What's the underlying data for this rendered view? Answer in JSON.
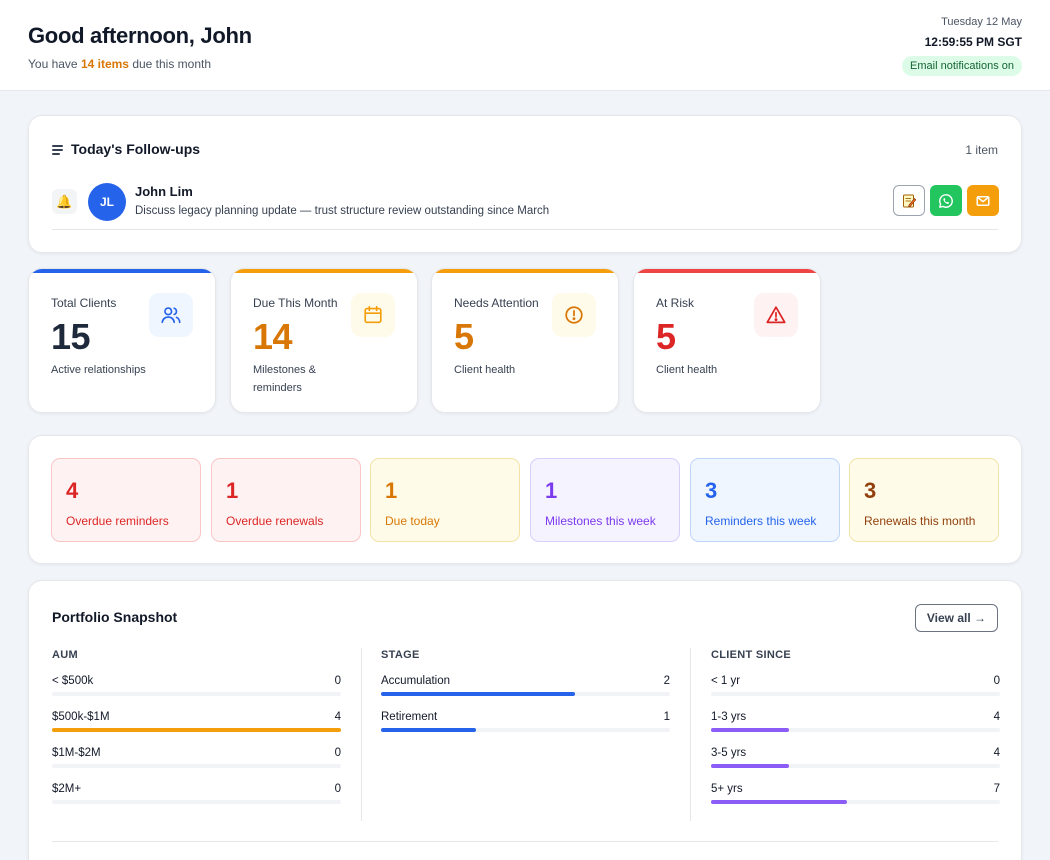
{
  "header": {
    "greeting": "Good afternoon, John",
    "sub_prefix": "You have ",
    "sub_highlight": "14 items",
    "sub_suffix": " due this month",
    "date": "Tuesday 12 May",
    "time": "12:59:55 PM SGT",
    "notifications_badge": "Email notifications on"
  },
  "followups": {
    "title": "Today's Follow-ups",
    "count": "1 item",
    "items": [
      {
        "icon": "bell-icon",
        "initials": "JL",
        "name": "John Lim",
        "note": "Discuss legacy planning update — trust structure review outstanding since March",
        "actions": [
          "note-icon",
          "whatsapp-icon",
          "mail-icon"
        ]
      }
    ]
  },
  "stats": [
    {
      "label": "Total Clients",
      "value": "15",
      "sub": "Active relationships",
      "color": "#1e293b",
      "accent": "#2563eb",
      "icon": "users-icon",
      "icon_bg": "#eff6ff"
    },
    {
      "label": "Due This Month",
      "value": "14",
      "sub": "Milestones & reminders",
      "color": "#d97706",
      "accent": "#f59e0b",
      "icon": "calendar-icon",
      "icon_bg": "#fffbeb"
    },
    {
      "label": "Needs Attention",
      "value": "5",
      "sub": "Client health",
      "color": "#d97706",
      "accent": "#f59e0b",
      "icon": "alert-circle-icon",
      "icon_bg": "#fffbeb"
    },
    {
      "label": "At Risk",
      "value": "5",
      "sub": "Client health",
      "color": "#dc2626",
      "accent": "#ef4444",
      "icon": "warning-triangle-icon",
      "icon_bg": "#fef2f2"
    }
  ],
  "summary": [
    {
      "value": "4",
      "label": "Overdue reminders",
      "color": "#dc2626",
      "bg": "#fef2f2",
      "border": "#f9c5c5"
    },
    {
      "value": "1",
      "label": "Overdue renewals",
      "color": "#dc2626",
      "bg": "#fef2f2",
      "border": "#f9c5c5"
    },
    {
      "value": "1",
      "label": "Due today",
      "color": "#d97706",
      "bg": "#fefce8",
      "border": "#f3e3a6"
    },
    {
      "value": "1",
      "label": "Milestones this week",
      "color": "#7c3aed",
      "bg": "#f5f3ff",
      "border": "#d8cef9"
    },
    {
      "value": "3",
      "label": "Reminders this week",
      "color": "#2563eb",
      "bg": "#eff6ff",
      "border": "#bfd5f8"
    },
    {
      "value": "3",
      "label": "Renewals this month",
      "color": "#92400e",
      "bg": "#fefce8",
      "border": "#f3e3a6"
    }
  ],
  "portfolio": {
    "title": "Portfolio Snapshot",
    "view_all": "View all →",
    "columns": [
      {
        "heading": "AUM",
        "color": "#f59e0b",
        "rows": [
          {
            "label": "< $500k",
            "value": "0",
            "fraction": 0
          },
          {
            "label": "$500k-$1M",
            "value": "4",
            "fraction": 1
          },
          {
            "label": "$1M-$2M",
            "value": "0",
            "fraction": 0
          },
          {
            "label": "$2M+",
            "value": "0",
            "fraction": 0
          }
        ]
      },
      {
        "heading": "STAGE",
        "color": "#2563eb",
        "rows": [
          {
            "label": "Accumulation",
            "value": "2",
            "fraction": 0.67
          },
          {
            "label": "Retirement",
            "value": "1",
            "fraction": 0.33
          }
        ]
      },
      {
        "heading": "CLIENT SINCE",
        "color": "#8b5cf6",
        "rows": [
          {
            "label": "< 1 yr",
            "value": "0",
            "fraction": 0
          },
          {
            "label": "1-3 yrs",
            "value": "4",
            "fraction": 0.27
          },
          {
            "label": "3-5 yrs",
            "value": "4",
            "fraction": 0.27
          },
          {
            "label": "5+ yrs",
            "value": "7",
            "fraction": 0.47
          }
        ]
      }
    ]
  }
}
